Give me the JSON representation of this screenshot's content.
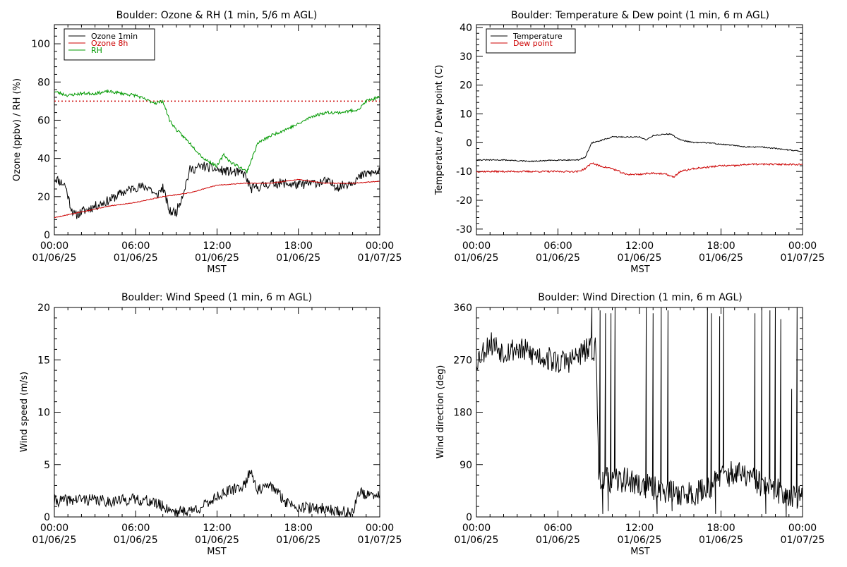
{
  "x_axis": {
    "label": "MST",
    "ticks": [
      {
        "time": "00:00",
        "date": "01/06/25"
      },
      {
        "time": "06:00",
        "date": "01/06/25"
      },
      {
        "time": "12:00",
        "date": "01/06/25"
      },
      {
        "time": "18:00",
        "date": "01/06/25"
      },
      {
        "time": "00:00",
        "date": "01/07/25"
      }
    ]
  },
  "chart_data": [
    {
      "type": "line",
      "title": "Boulder: Ozone & RH (1 min, 5/6 m AGL)",
      "xlabel": "MST",
      "ylabel": "Ozone (ppbv) / RH (%)",
      "x_hours": [
        0,
        24
      ],
      "ylim": [
        0,
        110
      ],
      "yticks": [
        0,
        20,
        40,
        60,
        80,
        100
      ],
      "legend_position": "top-left",
      "reference_line": {
        "y": 70,
        "color": "#cc0000",
        "style": "dotted"
      },
      "series": [
        {
          "name": "Ozone 1min",
          "color": "#000000",
          "noise": 2.5,
          "seed": 11,
          "hours": [
            0,
            0.8,
            1.2,
            1.5,
            2,
            3,
            4,
            5,
            6,
            7,
            7.5,
            8,
            8.5,
            9,
            9.5,
            10,
            11,
            12,
            13,
            14,
            14.5,
            15,
            16,
            17,
            18,
            19,
            20,
            21,
            22,
            23,
            24
          ],
          "values": [
            30,
            26,
            15,
            10,
            12,
            15,
            18,
            22,
            25,
            25,
            20,
            25,
            12,
            12,
            22,
            34,
            36,
            34,
            33,
            32,
            24,
            25,
            27,
            27,
            26,
            27,
            28,
            25,
            28,
            32,
            33
          ]
        },
        {
          "name": "Ozone 8h",
          "color": "#cc0000",
          "noise": 0.2,
          "seed": 5,
          "hours": [
            0,
            2,
            4,
            6,
            8,
            10,
            12,
            14,
            16,
            18,
            20,
            22,
            24
          ],
          "values": [
            9,
            12,
            15,
            17,
            20,
            22,
            26,
            27,
            27,
            29,
            27,
            27,
            28
          ]
        },
        {
          "name": "RH",
          "color": "#009900",
          "noise": 0.8,
          "seed": 23,
          "hours": [
            0,
            1,
            2,
            3,
            4,
            5,
            6,
            7,
            7.5,
            8,
            8.5,
            9,
            10,
            11,
            12,
            12.5,
            13,
            13.8,
            14.2,
            15,
            16,
            17,
            18,
            19,
            20,
            21,
            22,
            22.5,
            23,
            24
          ],
          "values": [
            75,
            73,
            74,
            74,
            75,
            74,
            73,
            70,
            69,
            70,
            60,
            55,
            48,
            40,
            36,
            42,
            38,
            35,
            33,
            48,
            52,
            55,
            58,
            62,
            64,
            64,
            65,
            66,
            70,
            72
          ]
        }
      ]
    },
    {
      "type": "line",
      "title": "Boulder: Temperature & Dew point (1 min, 6 m AGL)",
      "xlabel": "MST",
      "ylabel": "Temperature / Dew point (C)",
      "x_hours": [
        0,
        24
      ],
      "ylim": [
        -32,
        41
      ],
      "yticks": [
        -30,
        -20,
        -10,
        0,
        10,
        20,
        30,
        40
      ],
      "legend_position": "top-left",
      "series": [
        {
          "name": "Temperature",
          "color": "#000000",
          "noise": 0.2,
          "seed": 31,
          "hours": [
            0,
            2,
            4,
            6,
            7.5,
            8,
            8.5,
            9,
            10,
            11,
            12,
            12.5,
            13,
            14,
            14.3,
            15,
            16,
            17,
            18,
            19,
            20,
            21,
            22,
            23,
            24
          ],
          "values": [
            -6,
            -6,
            -6.5,
            -6,
            -6,
            -5,
            0,
            0.5,
            2,
            2,
            2,
            1,
            2.5,
            3,
            3,
            1,
            0,
            0,
            -0.5,
            -1,
            -1.5,
            -1.5,
            -2,
            -2.5,
            -3
          ]
        },
        {
          "name": "Dew point",
          "color": "#cc0000",
          "noise": 0.3,
          "seed": 37,
          "hours": [
            0,
            2,
            4,
            6,
            7.5,
            8,
            8.5,
            9,
            10,
            11,
            12,
            13,
            14,
            14.5,
            15,
            16,
            17,
            18,
            19,
            20,
            21,
            22,
            23,
            24
          ],
          "values": [
            -10,
            -10,
            -10,
            -10,
            -10,
            -9,
            -7,
            -8,
            -9,
            -11,
            -11,
            -10.5,
            -11,
            -12,
            -10,
            -9,
            -8.5,
            -8,
            -8,
            -7.5,
            -7.5,
            -7.5,
            -7.5,
            -7.5
          ]
        }
      ]
    },
    {
      "type": "line",
      "title": "Boulder: Wind Speed (1 min, 6 m AGL)",
      "xlabel": "MST",
      "ylabel": "Wind speed (m/s)",
      "x_hours": [
        0,
        24
      ],
      "ylim": [
        0,
        20
      ],
      "yticks": [
        0,
        5,
        10,
        15,
        20
      ],
      "series": [
        {
          "color": "#000000",
          "noise": 0.55,
          "seed": 41,
          "hours": [
            0,
            2,
            4,
            6,
            7,
            8,
            9,
            10,
            11,
            12,
            13,
            14,
            14.5,
            15,
            16,
            17,
            18,
            19,
            20,
            21,
            22,
            22.5,
            23,
            24
          ],
          "values": [
            1.5,
            1.7,
            1.5,
            1.7,
            1.5,
            1.0,
            0.5,
            0.6,
            1.0,
            2.0,
            2.5,
            3.0,
            4.5,
            2.5,
            3.0,
            1.5,
            1.0,
            0.8,
            0.8,
            0.5,
            0.4,
            2.5,
            2.0,
            2.0
          ]
        }
      ]
    },
    {
      "type": "line",
      "title": "Boulder: Wind Direction (1 min, 6 m AGL)",
      "xlabel": "MST",
      "ylabel": "Wind direction (deg)",
      "x_hours": [
        0,
        24
      ],
      "ylim": [
        0,
        360
      ],
      "yticks": [
        0,
        90,
        180,
        270,
        360
      ],
      "series": [
        {
          "color": "#000000",
          "noise": 22,
          "seed": 53,
          "hours": [
            0,
            1,
            2,
            3,
            4,
            5,
            6,
            7,
            8,
            8.8,
            9,
            10,
            11,
            12,
            13,
            14,
            15,
            16,
            17,
            18,
            19,
            20,
            21,
            22,
            23,
            24
          ],
          "values": [
            270,
            300,
            285,
            290,
            280,
            275,
            265,
            270,
            285,
            290,
            70,
            60,
            65,
            55,
            50,
            45,
            40,
            40,
            50,
            70,
            75,
            70,
            55,
            45,
            40,
            30
          ],
          "spikes": [
            [
              8.5,
              360
            ],
            [
              9.1,
              355
            ],
            [
              9.3,
              5
            ],
            [
              9.5,
              350
            ],
            [
              9.7,
              10
            ],
            [
              9.9,
              350
            ],
            [
              10.2,
              360
            ],
            [
              12.5,
              360
            ],
            [
              13.0,
              350
            ],
            [
              13.3,
              5
            ],
            [
              13.6,
              360
            ],
            [
              14.1,
              355
            ],
            [
              14.4,
              10
            ],
            [
              17.0,
              360
            ],
            [
              17.3,
              350
            ],
            [
              17.6,
              5
            ],
            [
              17.9,
              345
            ],
            [
              18.2,
              360
            ],
            [
              20.5,
              350
            ],
            [
              21.0,
              360
            ],
            [
              21.3,
              5
            ],
            [
              21.6,
              355
            ],
            [
              22.0,
              360
            ],
            [
              22.4,
              340
            ],
            [
              22.8,
              0
            ],
            [
              23.2,
              220
            ],
            [
              23.6,
              360
            ]
          ]
        }
      ]
    }
  ]
}
